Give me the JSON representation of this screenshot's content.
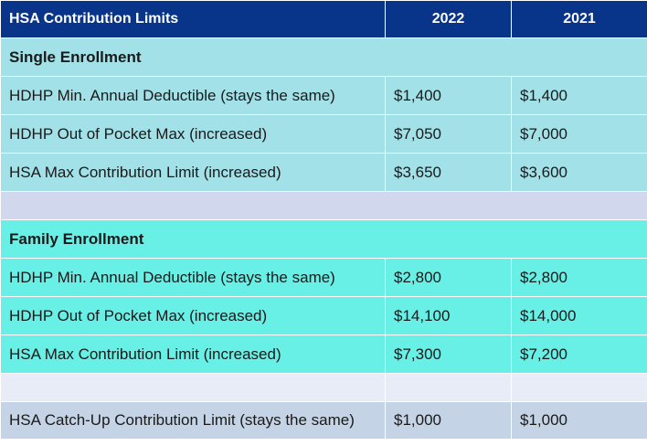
{
  "table": {
    "title": "HSA Contribution Limits",
    "col_2022": "2022",
    "col_2021": "2021",
    "single": {
      "heading": "Single Enrollment",
      "rows": [
        {
          "label": "HDHP Min. Annual Deductible (stays the same)",
          "v2022": "$1,400",
          "v2021": "$1,400"
        },
        {
          "label": "HDHP Out of Pocket Max (increased)",
          "v2022": "$7,050",
          "v2021": "$7,000"
        },
        {
          "label": "HSA Max Contribution Limit (increased)",
          "v2022": "$3,650",
          "v2021": "$3,600"
        }
      ]
    },
    "family": {
      "heading": "Family Enrollment",
      "rows": [
        {
          "label": "HDHP Min. Annual Deductible (stays the same)",
          "v2022": "$2,800",
          "v2021": "$2,800"
        },
        {
          "label": "HDHP Out of Pocket Max (increased)",
          "v2022": "$14,100",
          "v2021": "$14,000"
        },
        {
          "label": "HSA Max Contribution Limit (increased)",
          "v2022": "$7,300",
          "v2021": "$7,200"
        }
      ]
    },
    "catchup": {
      "label": "HSA Catch-Up Contribution Limit (stays the same)",
      "v2022": "$1,000",
      "v2021": "$1,000"
    }
  },
  "colors": {
    "header": "#08358a",
    "single": "#a3e1e8",
    "family": "#68efe6",
    "catchup": "#c4d3e5"
  }
}
